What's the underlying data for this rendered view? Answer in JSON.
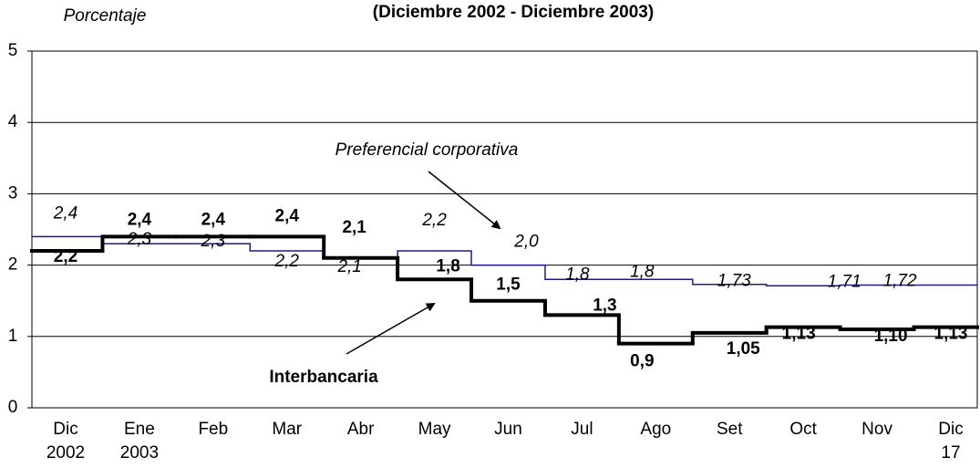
{
  "chart_data": {
    "type": "step-line",
    "title": "(Diciembre 2002 - Diciembre 2003)",
    "y_label": "Porcentaje",
    "categories": [
      "Dic\n2002",
      "Ene\n2003",
      "Feb",
      "Mar",
      "Abr",
      "May",
      "Jun",
      "Jul",
      "Ago",
      "Set",
      "Oct",
      "Nov",
      "Dic\n17"
    ],
    "ylim": [
      0,
      5
    ],
    "yticks": [
      0,
      1,
      2,
      3,
      4,
      5
    ],
    "grid": true,
    "series": [
      {
        "name": "Preferencial corporativa",
        "color": "#1f1f80",
        "values": [
          2.4,
          2.3,
          2.3,
          2.2,
          2.1,
          2.2,
          2.0,
          1.8,
          1.8,
          1.73,
          1.71,
          1.72,
          1.72
        ],
        "value_labels": [
          "2,4",
          "2,3",
          "2,3",
          "2,2",
          "2,1",
          "2,2",
          "2,0",
          "1,8",
          "1,8",
          "1,73",
          "1,71",
          "1,72",
          "1,72"
        ]
      },
      {
        "name": "Interbancaria",
        "color": "#000000",
        "values": [
          2.2,
          2.4,
          2.4,
          2.4,
          2.1,
          1.8,
          1.5,
          1.3,
          0.9,
          1.05,
          1.13,
          1.1,
          1.13
        ],
        "value_labels": [
          "2,2",
          "2,4",
          "2,4",
          "2,4",
          "2,1",
          "1,8",
          "1,5",
          "1,3",
          "0,9",
          "1,05",
          "1,13",
          "1,10",
          "1,13"
        ]
      }
    ]
  }
}
